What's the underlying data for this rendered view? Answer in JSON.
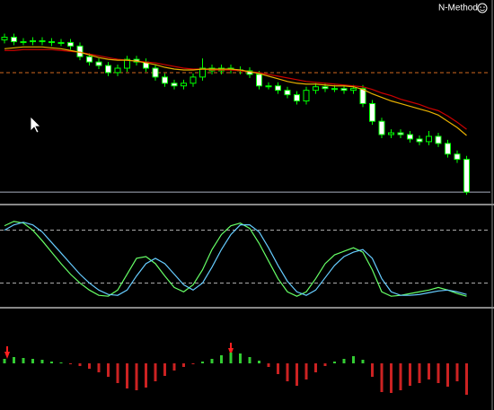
{
  "header": {
    "indicator_label": "N-Method"
  },
  "chart_data": [
    {
      "type": "candlestick",
      "ylim": [
        0,
        226
      ],
      "up_color": "#000000",
      "down_color": "#ffffff",
      "wick_color": "#00ff00",
      "open": [
        183,
        186,
        181,
        181,
        182,
        181,
        180,
        180,
        176,
        164,
        158,
        154,
        146,
        151,
        161,
        158,
        151,
        141,
        134,
        131,
        134,
        141,
        151,
        148,
        151,
        149,
        148,
        144,
        131,
        131,
        126,
        121,
        114,
        126,
        130,
        128,
        128,
        126,
        128,
        111,
        91,
        76,
        78,
        76,
        71,
        68,
        74,
        66,
        54,
        48
      ],
      "high": [
        190,
        190,
        185,
        186,
        186,
        185,
        184,
        184,
        180,
        168,
        162,
        158,
        155,
        165,
        165,
        162,
        155,
        145,
        138,
        138,
        145,
        162,
        155,
        155,
        155,
        153,
        152,
        148,
        135,
        135,
        130,
        125,
        130,
        134,
        134,
        132,
        132,
        132,
        132,
        115,
        95,
        82,
        82,
        80,
        75,
        80,
        78,
        70,
        58,
        52
      ],
      "low": [
        179,
        177,
        177,
        177,
        177,
        176,
        176,
        172,
        160,
        154,
        150,
        142,
        142,
        147,
        154,
        147,
        137,
        130,
        127,
        127,
        130,
        137,
        144,
        144,
        145,
        144,
        140,
        127,
        127,
        122,
        117,
        110,
        110,
        122,
        124,
        124,
        122,
        122,
        107,
        87,
        72,
        72,
        72,
        67,
        64,
        64,
        62,
        50,
        44,
        8
      ],
      "close": [
        186,
        181,
        181,
        182,
        181,
        180,
        180,
        176,
        164,
        158,
        154,
        146,
        151,
        161,
        158,
        151,
        141,
        134,
        131,
        134,
        141,
        151,
        148,
        151,
        149,
        148,
        144,
        131,
        131,
        126,
        121,
        114,
        126,
        130,
        128,
        128,
        126,
        128,
        111,
        91,
        76,
        78,
        76,
        71,
        68,
        74,
        66,
        54,
        48,
        11
      ],
      "series": [
        {
          "color": "#cc0000",
          "values": [
            171,
            171,
            172,
            172,
            172,
            172,
            171,
            170,
            169,
            167,
            165,
            163,
            161,
            160,
            159,
            158,
            157,
            155,
            153,
            151,
            150,
            150,
            149,
            149,
            149,
            148,
            147,
            146,
            144,
            142,
            140,
            138,
            136,
            135,
            134,
            133,
            132,
            131,
            130,
            127,
            123,
            120,
            116,
            113,
            110,
            106,
            103,
            97,
            90,
            82
          ]
        },
        {
          "color": "#e8b000",
          "values": [
            173,
            174,
            175,
            175,
            175,
            174,
            173,
            171,
            169,
            166,
            163,
            161,
            160,
            160,
            159,
            157,
            155,
            152,
            150,
            149,
            149,
            150,
            150,
            150,
            150,
            149,
            147,
            145,
            142,
            139,
            136,
            134,
            133,
            133,
            132,
            131,
            131,
            130,
            127,
            122,
            118,
            114,
            111,
            108,
            105,
            102,
            98,
            91,
            84,
            75
          ]
        }
      ],
      "levels": [
        {
          "value": 146,
          "color": "#d2691e",
          "dash": true
        },
        {
          "value": 11,
          "color": "#aab0c0",
          "dash": false
        }
      ]
    },
    {
      "type": "line",
      "ylim": [
        -5,
        105
      ],
      "levels": [
        {
          "value": 80,
          "color": "#aaaaaa",
          "dash": true
        },
        {
          "value": 20,
          "color": "#aaaaaa",
          "dash": true
        }
      ],
      "series": [
        {
          "color": "#66ff66",
          "values": [
            85,
            90,
            88,
            80,
            68,
            55,
            42,
            30,
            20,
            12,
            6,
            5,
            12,
            30,
            48,
            50,
            42,
            28,
            15,
            10,
            18,
            35,
            58,
            75,
            85,
            88,
            82,
            65,
            45,
            25,
            10,
            5,
            10,
            25,
            42,
            52,
            56,
            60,
            55,
            35,
            10,
            5,
            6,
            8,
            10,
            12,
            15,
            12,
            8,
            5
          ]
        },
        {
          "color": "#66ccff",
          "values": [
            80,
            86,
            89,
            86,
            78,
            66,
            54,
            42,
            30,
            20,
            12,
            7,
            6,
            12,
            28,
            42,
            48,
            42,
            30,
            18,
            12,
            20,
            38,
            58,
            75,
            86,
            86,
            78,
            60,
            40,
            22,
            10,
            6,
            12,
            26,
            40,
            50,
            55,
            58,
            48,
            25,
            10,
            6,
            6,
            7,
            9,
            11,
            12,
            10,
            7
          ]
        }
      ]
    },
    {
      "type": "bar",
      "ylim": [
        -50,
        50
      ],
      "up_color": "#33cc33",
      "down_color": "#cc2222",
      "values": [
        5,
        7,
        6,
        5,
        4,
        2,
        1,
        -1,
        -3,
        -6,
        -10,
        -15,
        -22,
        -28,
        -30,
        -27,
        -20,
        -14,
        -8,
        -4,
        -1,
        2,
        5,
        9,
        12,
        11,
        7,
        3,
        -4,
        -12,
        -20,
        -25,
        -18,
        -10,
        -3,
        2,
        5,
        8,
        4,
        -15,
        -32,
        -33,
        -30,
        -25,
        -22,
        -18,
        -22,
        -26,
        -20,
        -35
      ]
    }
  ]
}
